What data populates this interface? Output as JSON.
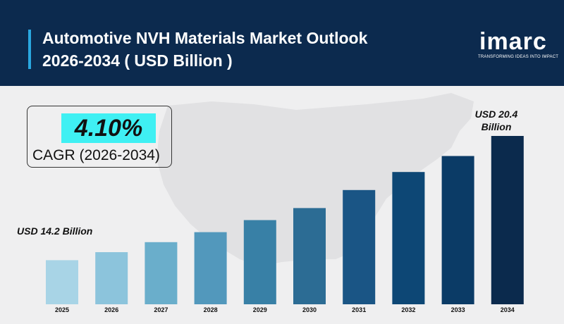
{
  "header": {
    "title_line1": "Automotive NVH Materials Market Outlook",
    "title_line2": "2026-2034 ( USD Billion )",
    "bg_color": "#0c2a4e",
    "accent_color": "#2aa8e0"
  },
  "logo": {
    "name": "imarc",
    "tagline": "TRANSFORMING IDEAS INTO IMPACT"
  },
  "cagr": {
    "value": "4.10%",
    "label": "CAGR (2026-2034)",
    "highlight_color": "#3ff0f3"
  },
  "annotations": {
    "start_line1": "USD 14.2 Billion",
    "end_line1": "USD 20.4",
    "end_line2": "Billion"
  },
  "chart_data": {
    "type": "bar",
    "title": "Automotive NVH Materials Market Outlook 2026-2034 ( USD Billion )",
    "categories": [
      "2025",
      "2026",
      "2027",
      "2028",
      "2029",
      "2030",
      "2031",
      "2032",
      "2033",
      "2034"
    ],
    "values": [
      14.2,
      14.6,
      15.1,
      15.6,
      16.2,
      16.8,
      17.7,
      18.6,
      19.4,
      20.4
    ],
    "ylim": [
      12.0,
      20.4
    ],
    "grid": false,
    "xlabel": "",
    "ylabel": "",
    "colors": [
      "#a8d4e6",
      "#8cc4dc",
      "#6aaecb",
      "#5298bc",
      "#3880a6",
      "#2c6c94",
      "#1a5585",
      "#0d4775",
      "#0b3b66",
      "#0b2a4d"
    ]
  }
}
